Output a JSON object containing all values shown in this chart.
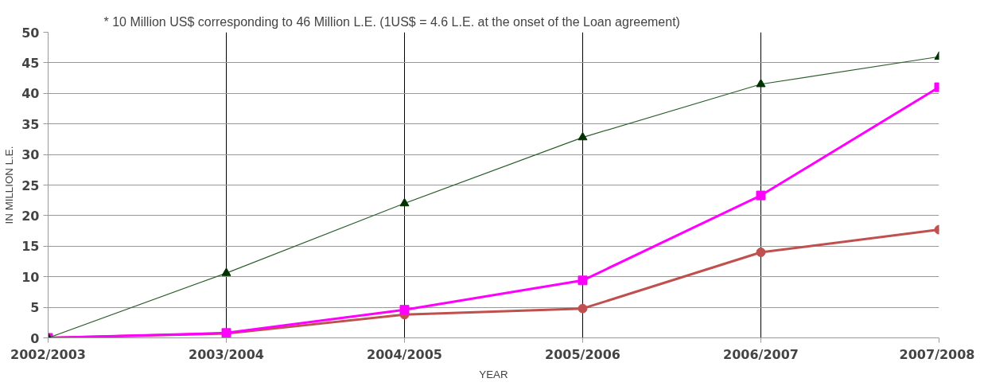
{
  "chart_data": {
    "type": "line",
    "xlabel": "YEAR",
    "ylabel": "IN MILLION L.E.",
    "annotations": [
      "* 10 Million US$ corresponding to 46 Million L.E. (1US$ = 4.6 L.E. at the onset of the Loan agreement)"
    ],
    "categories": [
      "2002/2003",
      "2003/2004",
      "2004/2005",
      "2005/2006",
      "2006/2007",
      "2007/2008"
    ],
    "ylim": [
      0,
      50
    ],
    "yticks": [
      0,
      5,
      10,
      15,
      20,
      25,
      30,
      35,
      40,
      45,
      50
    ],
    "grid": true,
    "series": [
      {
        "color": "#2e5e2e",
        "marker": "triangle",
        "values": [
          0,
          10.6,
          22,
          32.8,
          41.5,
          46
        ]
      },
      {
        "color": "#ff00ff",
        "marker": "square",
        "values": [
          0,
          0.8,
          4.6,
          9.4,
          23.3,
          41
        ]
      },
      {
        "color": "#c0504d",
        "marker": "circle",
        "values": [
          0,
          0.7,
          3.8,
          4.8,
          14,
          17.7
        ]
      }
    ]
  }
}
